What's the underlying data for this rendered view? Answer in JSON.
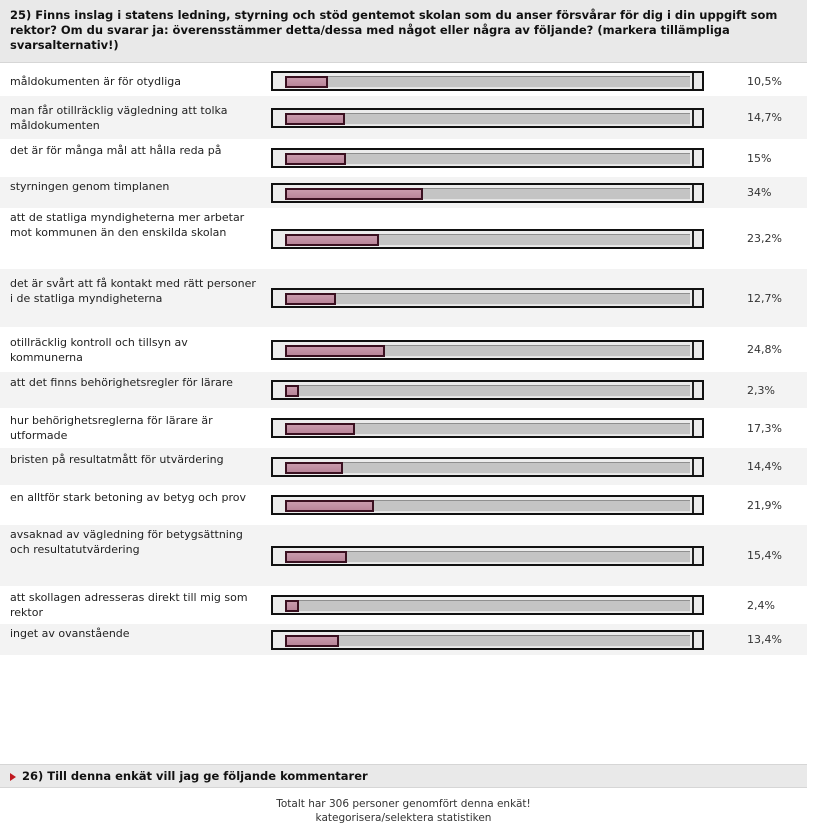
{
  "question": {
    "text": "25) Finns inslag i statens ledning, styrning och stöd gentemot skolan som du anser försvårar för dig i din uppgift som rektor? Om du svarar ja: överensstämmer detta/dessa med något eller några av följande? (markera tillämpliga svarsalternativ!)"
  },
  "options": [
    {
      "label": "måldokumenten är för otydliga",
      "percent": "10,5%",
      "value": 10.5
    },
    {
      "label": "man får otillräcklig vägledning att tolka måldokumenten",
      "percent": "14,7%",
      "value": 14.7
    },
    {
      "label": "det är för många mål att hålla reda på",
      "percent": "15%",
      "value": 15
    },
    {
      "label": "styrningen genom timplanen",
      "percent": "34%",
      "value": 34
    },
    {
      "label": "att de statliga myndigheterna mer arbetar mot kommunen än den enskilda skolan",
      "percent": "23,2%",
      "value": 23.2
    },
    {
      "label": "det är svårt att få kontakt med rätt personer i de statliga myndigheterna",
      "percent": "12,7%",
      "value": 12.7
    },
    {
      "label": "otillräcklig kontroll och tillsyn av kommunerna",
      "percent": "24,8%",
      "value": 24.8
    },
    {
      "label": "att det finns behörighetsregler för lärare",
      "percent": "2,3%",
      "value": 2.3
    },
    {
      "label": "hur behörighetsreglerna för lärare är utformade",
      "percent": "17,3%",
      "value": 17.3
    },
    {
      "label": "bristen på resultatmått för utvärdering",
      "percent": "14,4%",
      "value": 14.4
    },
    {
      "label": "en alltför stark betoning av betyg och prov",
      "percent": "21,9%",
      "value": 21.9
    },
    {
      "label": "avsaknad av vägledning för betygsättning och resultatutvärdering",
      "percent": "15,4%",
      "value": 15.4
    },
    {
      "label": "att skollagen adresseras direkt till mig som rektor",
      "percent": "2,4%",
      "value": 2.4
    },
    {
      "label": "inget av ovanstående",
      "percent": "13,4%",
      "value": 13.4
    }
  ],
  "next_question": {
    "text": "26) Till denna enkät vill jag ge följande kommentarer"
  },
  "footer": {
    "total_text": "Totalt har 306 personer genomfört denna enkät!",
    "link_text": "kategorisera/selektera statistiken"
  },
  "colors": {
    "bar_fill": "#c99aac",
    "bar_border": "#3a1020",
    "header_bg": "#e9e9e9",
    "arrow": "#c0181f"
  }
}
